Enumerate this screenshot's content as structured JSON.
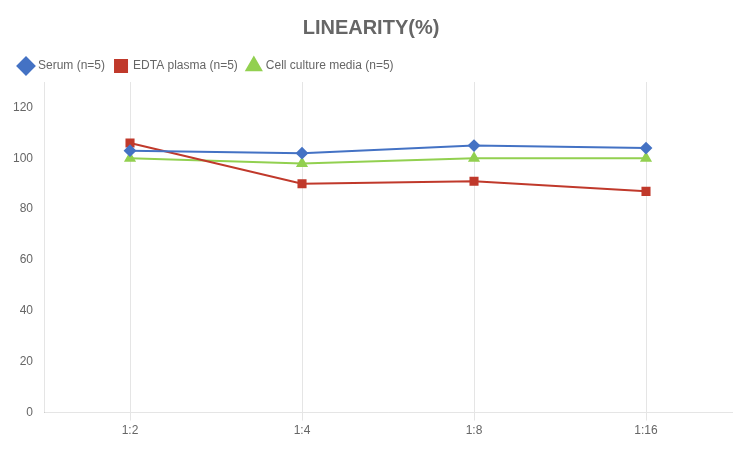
{
  "chart_data": {
    "type": "line",
    "title": "LINEARITY(%)",
    "categories": [
      "1:2",
      "1:4",
      "1:8",
      "1:16"
    ],
    "series": [
      {
        "name": "Serum (n=5)",
        "color": "#4472C4",
        "marker": "diamond",
        "values": [
          103,
          102,
          105,
          104
        ]
      },
      {
        "name": "EDTA plasma (n=5)",
        "color": "#C0392B",
        "marker": "square",
        "values": [
          106,
          90,
          91,
          87
        ]
      },
      {
        "name": "Cell culture media (n=5)",
        "color": "#92D050",
        "marker": "triangle",
        "values": [
          100,
          98,
          100,
          100
        ]
      }
    ],
    "ylim": [
      0,
      130
    ],
    "yticks": [
      0,
      20,
      40,
      60,
      80,
      100,
      120
    ],
    "grid": "x",
    "legend": "upper left"
  }
}
